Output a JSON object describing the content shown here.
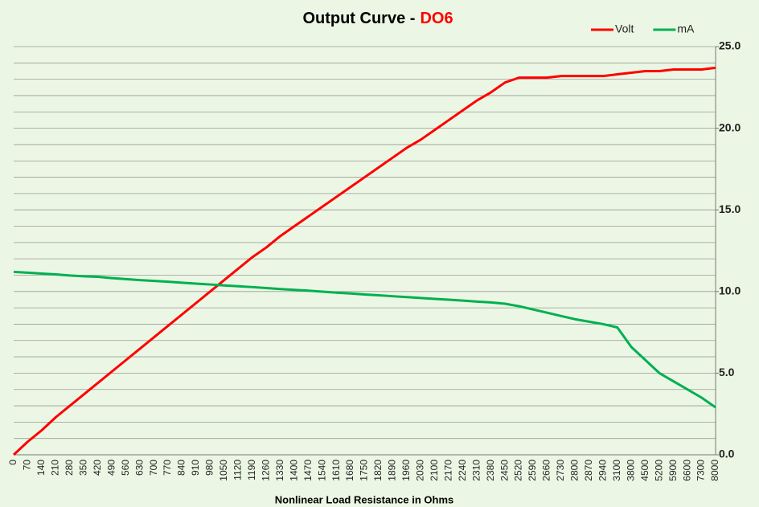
{
  "chart_data": {
    "type": "line",
    "title": "Output Curve -",
    "title_highlight": "DO6",
    "title_highlight_color": "#ff0000",
    "x_label": "Nonlinear Load Resistance in Ohms",
    "categories": [
      "0",
      "70",
      "140",
      "210",
      "280",
      "350",
      "420",
      "490",
      "560",
      "630",
      "700",
      "770",
      "840",
      "910",
      "980",
      "1050",
      "1120",
      "1190",
      "1260",
      "1330",
      "1400",
      "1470",
      "1540",
      "1610",
      "1680",
      "1750",
      "1820",
      "1890",
      "1960",
      "2030",
      "2100",
      "2170",
      "2240",
      "2310",
      "2380",
      "2450",
      "2520",
      "2590",
      "2660",
      "2730",
      "2800",
      "2870",
      "2940",
      "3100",
      "3800",
      "4500",
      "5200",
      "5900",
      "6600",
      "7300",
      "8000"
    ],
    "series": [
      {
        "name": "Volt",
        "color": "#ff0000",
        "values": [
          0,
          0.8,
          1.5,
          2.3,
          3.0,
          3.7,
          4.4,
          5.1,
          5.8,
          6.5,
          7.2,
          7.9,
          8.6,
          9.3,
          10.0,
          10.7,
          11.4,
          12.1,
          12.7,
          13.4,
          14.0,
          14.6,
          15.2,
          15.8,
          16.4,
          17.0,
          17.6,
          18.2,
          18.8,
          19.3,
          19.9,
          20.5,
          21.1,
          21.7,
          22.2,
          22.8,
          23.1,
          23.1,
          23.1,
          23.2,
          23.2,
          23.2,
          23.2,
          23.3,
          23.4,
          23.5,
          23.5,
          23.6,
          23.6,
          23.6,
          23.7
        ]
      },
      {
        "name": "mA",
        "color": "#00b050",
        "values": [
          11.2,
          11.15,
          11.1,
          11.05,
          10.98,
          10.93,
          10.9,
          10.82,
          10.76,
          10.7,
          10.65,
          10.6,
          10.54,
          10.48,
          10.43,
          10.37,
          10.32,
          10.27,
          10.21,
          10.15,
          10.1,
          10.05,
          9.99,
          9.93,
          9.88,
          9.82,
          9.77,
          9.71,
          9.66,
          9.6,
          9.55,
          9.5,
          9.44,
          9.38,
          9.33,
          9.25,
          9.1,
          8.9,
          8.7,
          8.5,
          8.3,
          8.15,
          8.0,
          7.8,
          6.6,
          5.8,
          5.0,
          4.5,
          4.0,
          3.5,
          2.9
        ]
      }
    ],
    "ylim": [
      0,
      25
    ],
    "yticks": [
      {
        "value": 0,
        "label": "0.0"
      },
      {
        "value": 5,
        "label": "5.0"
      },
      {
        "value": 10,
        "label": "10.0"
      },
      {
        "value": 15,
        "label": "15.0"
      },
      {
        "value": 20,
        "label": "20.0"
      },
      {
        "value": 25,
        "label": "25.0"
      }
    ],
    "grid_yticks": [
      0,
      1,
      2,
      3,
      4,
      5,
      6,
      7,
      8,
      9,
      10,
      11,
      12,
      13,
      14,
      15,
      16,
      17,
      18,
      19,
      20,
      21,
      22,
      23,
      24,
      25
    ],
    "y_axis_side": "right",
    "legend": "top-right"
  }
}
